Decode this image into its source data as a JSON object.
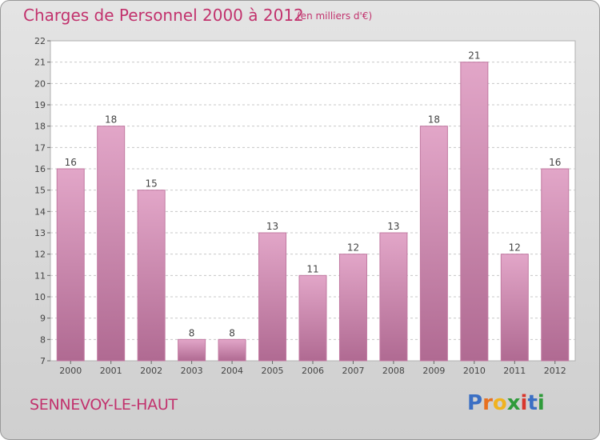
{
  "chart_data": {
    "type": "bar",
    "title": "Charges de Personnel 2000 à 2012",
    "subtitle": "(en milliers d'€)",
    "categories": [
      "2000",
      "2001",
      "2002",
      "2003",
      "2004",
      "2005",
      "2006",
      "2007",
      "2008",
      "2009",
      "2010",
      "2011",
      "2012"
    ],
    "values": [
      16,
      18,
      15,
      8,
      8,
      13,
      11,
      12,
      13,
      18,
      21,
      12,
      16
    ],
    "data_labels": [
      "16",
      "18",
      "15",
      "8",
      "8",
      "13",
      "11",
      "12",
      "13",
      "18",
      "21",
      "12",
      "16"
    ],
    "ylim": [
      7,
      22
    ],
    "yticks": [
      "7",
      "8",
      "9",
      "10",
      "11",
      "12",
      "13",
      "14",
      "15",
      "16",
      "17",
      "18",
      "19",
      "20",
      "21",
      "22"
    ],
    "grid": true,
    "bar_color_top": "#e2a6c8",
    "bar_color_bottom": "#b06a92"
  },
  "footer": {
    "location": "SENNEVOY-LE-HAUT"
  },
  "logo": {
    "text": "Proxiti",
    "letters": [
      "P",
      "r",
      "o",
      "x",
      "i",
      "t",
      "i"
    ],
    "colors": [
      "#3b6fc4",
      "#e8701f",
      "#f0b31f",
      "#2f9b3a",
      "#d8372d",
      "#3b6fc4",
      "#2f9b3a"
    ]
  }
}
